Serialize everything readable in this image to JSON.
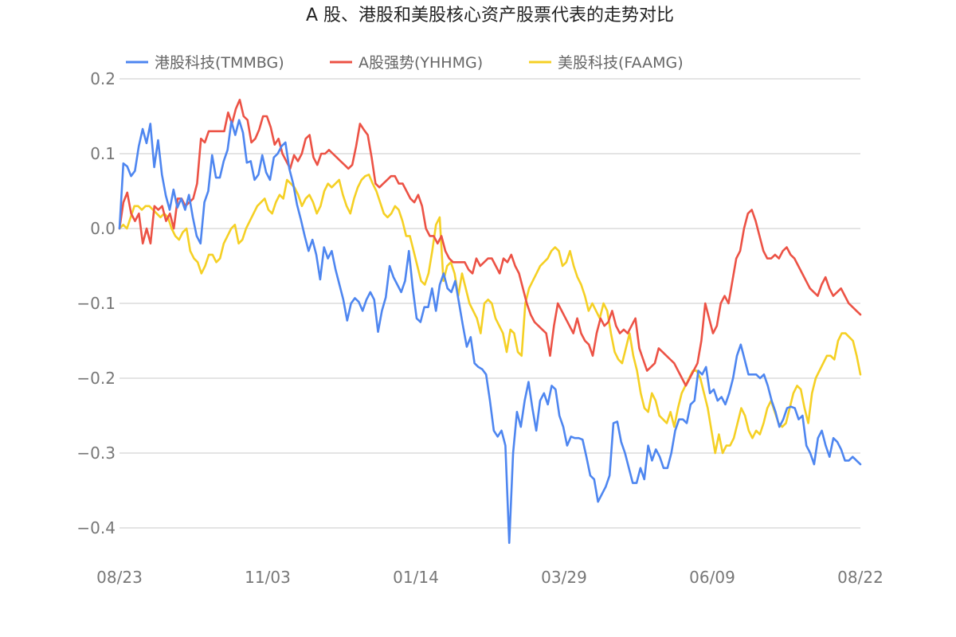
{
  "chart_data": {
    "type": "line",
    "title": "A 股、港股和美股核心资产股票代表的走势对比",
    "xlabel": "",
    "ylabel": "",
    "x_tick_labels": [
      "08/23",
      "11/03",
      "01/14",
      "03/29",
      "06/09",
      "08/22"
    ],
    "y_tick_labels": [
      "0.2",
      "0.1",
      "0.0",
      "−0.1",
      "−0.2",
      "−0.3",
      "−0.4"
    ],
    "y_ticks": [
      0.2,
      0.1,
      0.0,
      -0.1,
      -0.2,
      -0.3,
      -0.4
    ],
    "ylim": [
      -0.45,
      0.2
    ],
    "grid": true,
    "legend_position": "top",
    "series": [
      {
        "name": "港股科技(TMMBG)",
        "color": "#4e86f0",
        "values": [
          0.0,
          0.087,
          0.083,
          0.07,
          0.077,
          0.11,
          0.133,
          0.114,
          0.14,
          0.082,
          0.118,
          0.072,
          0.044,
          0.025,
          0.052,
          0.028,
          0.04,
          0.025,
          0.045,
          0.015,
          -0.01,
          -0.02,
          0.035,
          0.05,
          0.098,
          0.068,
          0.068,
          0.09,
          0.105,
          0.143,
          0.125,
          0.145,
          0.128,
          0.088,
          0.09,
          0.065,
          0.072,
          0.098,
          0.075,
          0.065,
          0.095,
          0.1,
          0.11,
          0.115,
          0.08,
          0.06,
          0.032,
          0.012,
          -0.01,
          -0.03,
          -0.015,
          -0.035,
          -0.068,
          -0.025,
          -0.04,
          -0.03,
          -0.055,
          -0.075,
          -0.095,
          -0.123,
          -0.1,
          -0.093,
          -0.098,
          -0.11,
          -0.095,
          -0.085,
          -0.095,
          -0.138,
          -0.11,
          -0.092,
          -0.05,
          -0.065,
          -0.075,
          -0.085,
          -0.07,
          -0.03,
          -0.08,
          -0.12,
          -0.125,
          -0.105,
          -0.105,
          -0.08,
          -0.11,
          -0.075,
          -0.06,
          -0.08,
          -0.085,
          -0.07,
          -0.1,
          -0.13,
          -0.158,
          -0.145,
          -0.18,
          -0.185,
          -0.188,
          -0.195,
          -0.23,
          -0.27,
          -0.278,
          -0.27,
          -0.29,
          -0.42,
          -0.3,
          -0.245,
          -0.265,
          -0.23,
          -0.205,
          -0.24,
          -0.27,
          -0.23,
          -0.22,
          -0.235,
          -0.21,
          -0.215,
          -0.25,
          -0.265,
          -0.29,
          -0.278,
          -0.28,
          -0.28,
          -0.282,
          -0.305,
          -0.33,
          -0.335,
          -0.365,
          -0.355,
          -0.345,
          -0.33,
          -0.26,
          -0.258,
          -0.285,
          -0.3,
          -0.32,
          -0.34,
          -0.34,
          -0.32,
          -0.335,
          -0.29,
          -0.31,
          -0.295,
          -0.305,
          -0.32,
          -0.32,
          -0.3,
          -0.27,
          -0.255,
          -0.255,
          -0.26,
          -0.235,
          -0.23,
          -0.19,
          -0.195,
          -0.185,
          -0.22,
          -0.215,
          -0.23,
          -0.225,
          -0.235,
          -0.22,
          -0.2,
          -0.17,
          -0.155,
          -0.175,
          -0.195,
          -0.195,
          -0.195,
          -0.2,
          -0.195,
          -0.21,
          -0.23,
          -0.245,
          -0.265,
          -0.255,
          -0.24,
          -0.238,
          -0.24,
          -0.255,
          -0.25,
          -0.29,
          -0.3,
          -0.315,
          -0.28,
          -0.27,
          -0.29,
          -0.305,
          -0.28,
          -0.285,
          -0.295,
          -0.31,
          -0.31,
          -0.305,
          -0.31,
          -0.315
        ]
      },
      {
        "name": "A股强势(YHHMG)",
        "color": "#ec5245",
        "values": [
          0.0,
          0.035,
          0.048,
          0.02,
          0.01,
          0.02,
          -0.02,
          0.0,
          -0.02,
          0.03,
          0.025,
          0.03,
          0.01,
          0.02,
          0.0,
          0.04,
          0.04,
          0.03,
          0.035,
          0.04,
          0.06,
          0.12,
          0.115,
          0.13,
          0.13,
          0.13,
          0.13,
          0.13,
          0.155,
          0.14,
          0.16,
          0.172,
          0.15,
          0.145,
          0.115,
          0.12,
          0.132,
          0.15,
          0.15,
          0.135,
          0.112,
          0.12,
          0.1,
          0.09,
          0.08,
          0.098,
          0.09,
          0.1,
          0.12,
          0.125,
          0.095,
          0.085,
          0.1,
          0.1,
          0.105,
          0.1,
          0.095,
          0.09,
          0.085,
          0.08,
          0.085,
          0.11,
          0.14,
          0.132,
          0.125,
          0.095,
          0.06,
          0.055,
          0.06,
          0.065,
          0.07,
          0.07,
          0.06,
          0.06,
          0.05,
          0.04,
          0.035,
          0.045,
          0.03,
          0.0,
          -0.01,
          -0.01,
          -0.02,
          -0.01,
          -0.03,
          -0.04,
          -0.045,
          -0.045,
          -0.045,
          -0.045,
          -0.055,
          -0.06,
          -0.04,
          -0.05,
          -0.045,
          -0.04,
          -0.04,
          -0.05,
          -0.06,
          -0.04,
          -0.045,
          -0.035,
          -0.05,
          -0.06,
          -0.08,
          -0.1,
          -0.115,
          -0.125,
          -0.13,
          -0.135,
          -0.14,
          -0.17,
          -0.13,
          -0.1,
          -0.11,
          -0.12,
          -0.13,
          -0.14,
          -0.12,
          -0.14,
          -0.15,
          -0.155,
          -0.17,
          -0.14,
          -0.12,
          -0.13,
          -0.125,
          -0.11,
          -0.13,
          -0.14,
          -0.135,
          -0.14,
          -0.13,
          -0.12,
          -0.16,
          -0.175,
          -0.19,
          -0.185,
          -0.18,
          -0.16,
          -0.165,
          -0.17,
          -0.175,
          -0.18,
          -0.19,
          -0.2,
          -0.21,
          -0.2,
          -0.19,
          -0.18,
          -0.15,
          -0.1,
          -0.12,
          -0.14,
          -0.13,
          -0.1,
          -0.09,
          -0.1,
          -0.07,
          -0.04,
          -0.03,
          0.0,
          0.02,
          0.025,
          0.01,
          -0.01,
          -0.03,
          -0.04,
          -0.04,
          -0.035,
          -0.04,
          -0.03,
          -0.025,
          -0.035,
          -0.04,
          -0.05,
          -0.06,
          -0.07,
          -0.08,
          -0.085,
          -0.09,
          -0.075,
          -0.065,
          -0.08,
          -0.09,
          -0.085,
          -0.08,
          -0.09,
          -0.1,
          -0.105,
          -0.11,
          -0.115
        ]
      },
      {
        "name": "美股科技(FAAMG)",
        "color": "#f5d024",
        "values": [
          0.0,
          0.005,
          0.0,
          0.015,
          0.03,
          0.03,
          0.025,
          0.03,
          0.03,
          0.025,
          0.02,
          0.015,
          0.02,
          0.015,
          0.0,
          -0.01,
          -0.015,
          -0.005,
          0.0,
          -0.03,
          -0.04,
          -0.045,
          -0.06,
          -0.05,
          -0.035,
          -0.035,
          -0.045,
          -0.04,
          -0.02,
          -0.01,
          0.0,
          0.005,
          -0.02,
          -0.015,
          0.0,
          0.01,
          0.02,
          0.03,
          0.035,
          0.04,
          0.025,
          0.02,
          0.035,
          0.045,
          0.04,
          0.065,
          0.06,
          0.055,
          0.045,
          0.03,
          0.04,
          0.045,
          0.035,
          0.02,
          0.03,
          0.05,
          0.06,
          0.055,
          0.06,
          0.065,
          0.045,
          0.03,
          0.02,
          0.04,
          0.055,
          0.065,
          0.07,
          0.072,
          0.06,
          0.05,
          0.035,
          0.02,
          0.015,
          0.02,
          0.03,
          0.025,
          0.01,
          -0.01,
          -0.01,
          -0.03,
          -0.05,
          -0.07,
          -0.075,
          -0.06,
          -0.03,
          0.005,
          0.015,
          -0.07,
          -0.05,
          -0.045,
          -0.06,
          -0.09,
          -0.06,
          -0.08,
          -0.1,
          -0.11,
          -0.12,
          -0.14,
          -0.1,
          -0.095,
          -0.1,
          -0.12,
          -0.13,
          -0.14,
          -0.165,
          -0.135,
          -0.14,
          -0.165,
          -0.17,
          -0.1,
          -0.08,
          -0.07,
          -0.06,
          -0.05,
          -0.045,
          -0.04,
          -0.03,
          -0.025,
          -0.03,
          -0.05,
          -0.045,
          -0.03,
          -0.05,
          -0.065,
          -0.075,
          -0.09,
          -0.11,
          -0.1,
          -0.11,
          -0.12,
          -0.1,
          -0.11,
          -0.14,
          -0.165,
          -0.175,
          -0.18,
          -0.16,
          -0.14,
          -0.17,
          -0.19,
          -0.22,
          -0.24,
          -0.245,
          -0.22,
          -0.23,
          -0.25,
          -0.255,
          -0.26,
          -0.245,
          -0.265,
          -0.24,
          -0.22,
          -0.21,
          -0.2,
          -0.19,
          -0.19,
          -0.2,
          -0.22,
          -0.24,
          -0.27,
          -0.3,
          -0.275,
          -0.3,
          -0.29,
          -0.29,
          -0.28,
          -0.26,
          -0.24,
          -0.25,
          -0.27,
          -0.28,
          -0.27,
          -0.275,
          -0.26,
          -0.24,
          -0.23,
          -0.245,
          -0.26,
          -0.265,
          -0.26,
          -0.24,
          -0.22,
          -0.21,
          -0.215,
          -0.24,
          -0.26,
          -0.22,
          -0.2,
          -0.19,
          -0.18,
          -0.17,
          -0.17,
          -0.175,
          -0.15,
          -0.14,
          -0.14,
          -0.145,
          -0.15,
          -0.17,
          -0.195
        ]
      }
    ]
  }
}
